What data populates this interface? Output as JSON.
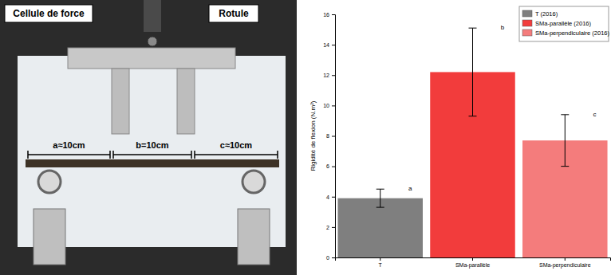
{
  "chart_data": {
    "type": "bar",
    "y_label": "Rigidité de flexion (N.m²)",
    "categories": [
      "T",
      "SMa-parallèle",
      "SMa-perpendiculaire"
    ],
    "series": [
      {
        "name": "T (2016)",
        "color": "#7f7f7f",
        "values": [
          3.9,
          null,
          null
        ],
        "errors": [
          0.6,
          null,
          null
        ],
        "annotations": [
          "a",
          null,
          null
        ]
      },
      {
        "name": "SMa-parallèle (2016)",
        "color": "#f23c3c",
        "values": [
          null,
          12.2,
          null
        ],
        "errors": [
          null,
          2.9,
          null
        ],
        "annotations": [
          null,
          "b",
          null
        ]
      },
      {
        "name": "SMa-perpendiculaire (2016)",
        "color": "#f47c7c",
        "values": [
          null,
          null,
          7.7
        ],
        "errors": [
          null,
          null,
          1.7
        ],
        "annotations": [
          null,
          null,
          "c"
        ]
      }
    ],
    "ylim": [
      0,
      16
    ],
    "yticks": [
      0,
      2,
      4,
      6,
      8,
      10,
      12,
      14,
      16
    ],
    "grid": false,
    "legend": "upper right"
  },
  "photo": {
    "force_cell": "Cellule de force",
    "joint": "Rotule",
    "spans": [
      "a≈10cm",
      "b=10cm",
      "c≈10cm"
    ]
  }
}
